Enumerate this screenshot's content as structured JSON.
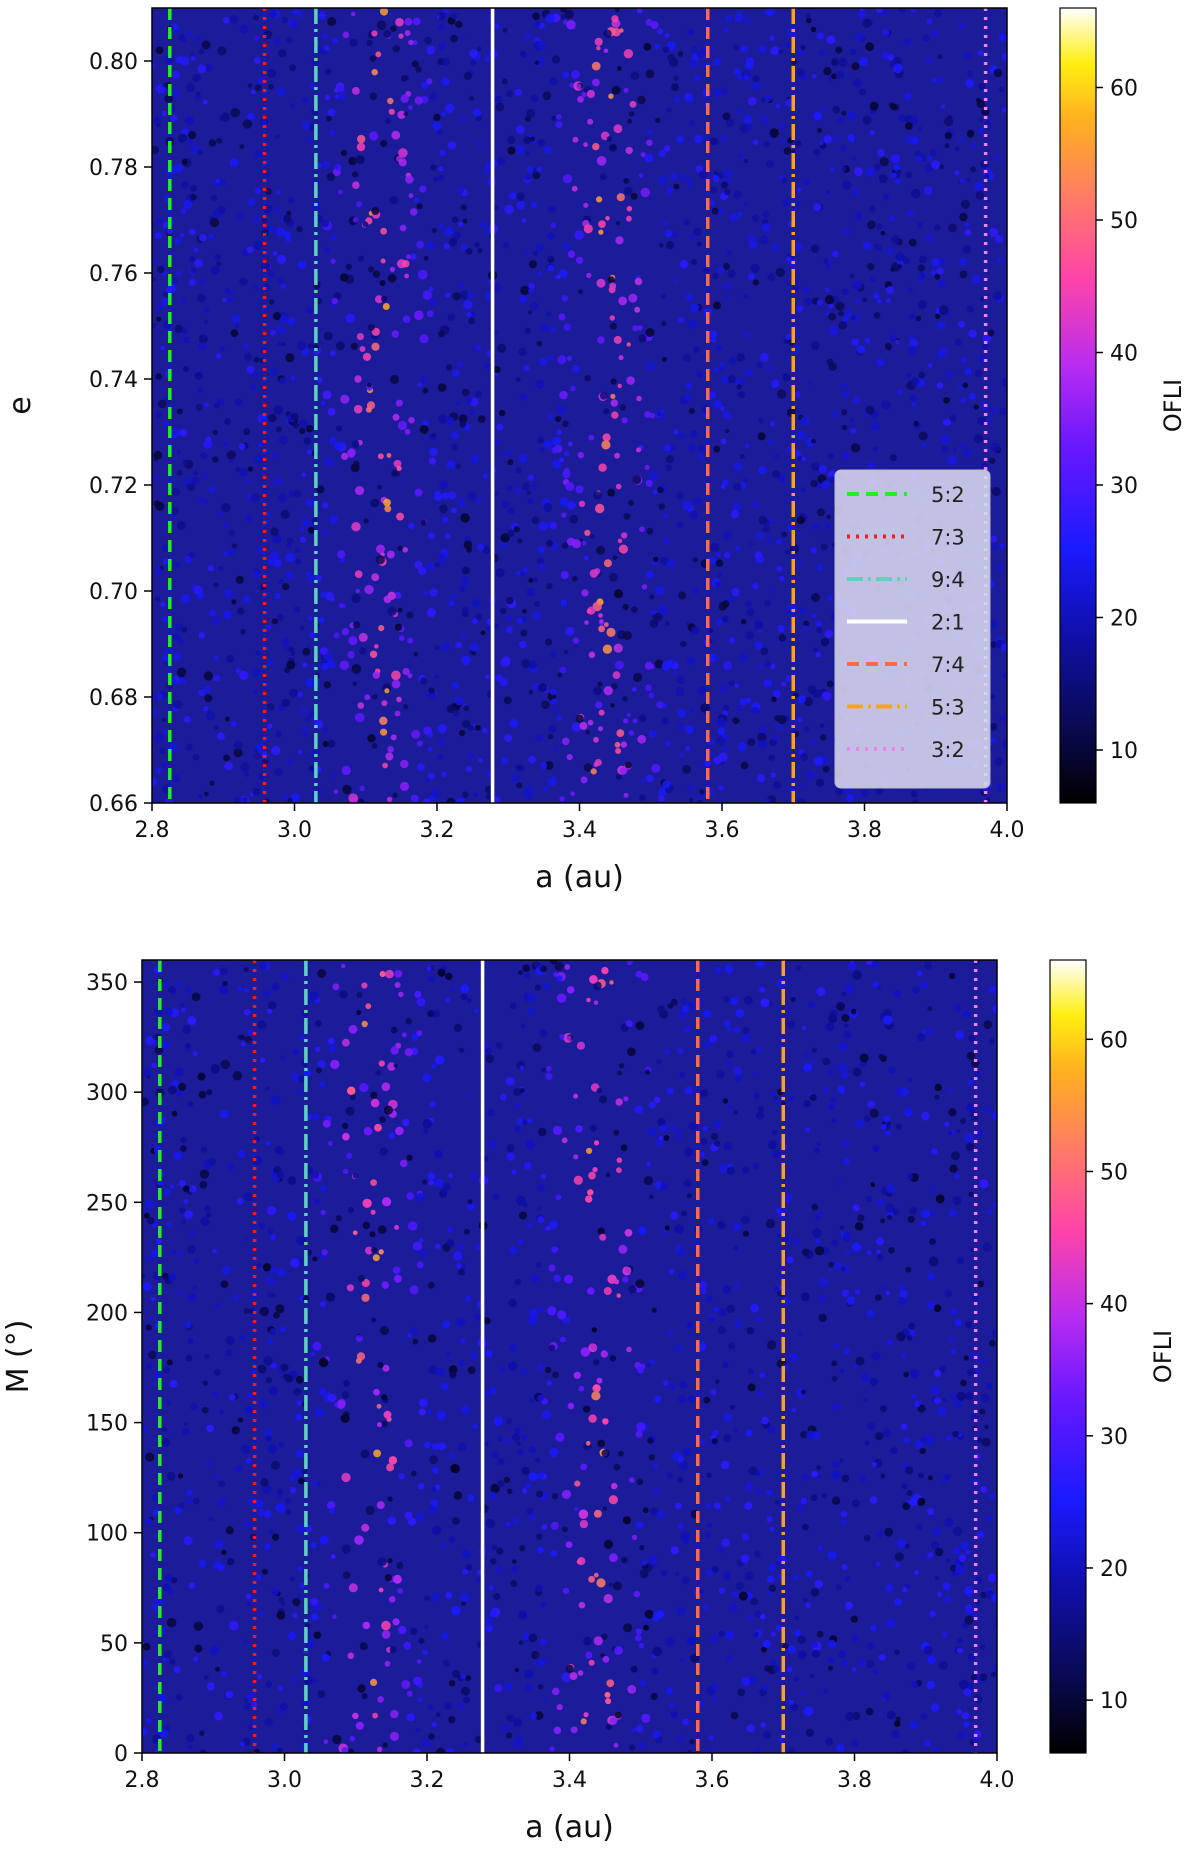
{
  "chart_data": [
    {
      "type": "scatter",
      "panel": "top",
      "xlabel": "a (au)",
      "ylabel": "e",
      "xlim": [
        2.8,
        4.0
      ],
      "ylim": [
        0.66,
        0.81
      ],
      "xticks": [
        "2.8",
        "3.0",
        "3.2",
        "3.4",
        "3.6",
        "3.8",
        "4.0"
      ],
      "yticks": [
        "0.66",
        "0.68",
        "0.70",
        "0.72",
        "0.74",
        "0.76",
        "0.78",
        "0.80"
      ],
      "colorbar": {
        "label": "OFLI",
        "range": [
          6,
          66
        ],
        "ticks": [
          "10",
          "20",
          "30",
          "40",
          "50",
          "60"
        ],
        "colormap": "gnuplot2"
      },
      "background_color": "#1c1c9a",
      "high_ofli_bands": [
        {
          "a_center": 3.12,
          "description": "bright band left of 2:1"
        },
        {
          "a_center": 3.44,
          "description": "bright band right of 2:1"
        }
      ],
      "resonances": [
        {
          "name": "5:2",
          "a": 2.825,
          "color": "#22ee22",
          "style": "dashed"
        },
        {
          "name": "7:3",
          "a": 2.958,
          "color": "#ff1a1a",
          "style": "dotted"
        },
        {
          "name": "9:4",
          "a": 3.03,
          "color": "#5fd3c0",
          "style": "dashdot"
        },
        {
          "name": "2:1",
          "a": 3.278,
          "color": "#ffffff",
          "style": "solid"
        },
        {
          "name": "7:4",
          "a": 3.58,
          "color": "#ff6b4a",
          "style": "dashed"
        },
        {
          "name": "5:3",
          "a": 3.7,
          "color": "#ffa21a",
          "style": "dashdot"
        },
        {
          "name": "3:2",
          "a": 3.97,
          "color": "#ee82ee",
          "style": "dotted"
        }
      ],
      "legend": {
        "placement": "lower-right",
        "entries": [
          "5:2",
          "7:3",
          "9:4",
          "2:1",
          "7:4",
          "5:3",
          "3:2"
        ]
      }
    },
    {
      "type": "scatter",
      "panel": "bottom",
      "xlabel": "a (au)",
      "ylabel": "M (°)",
      "xlim": [
        2.8,
        4.0
      ],
      "ylim": [
        0,
        360
      ],
      "xticks": [
        "2.8",
        "3.0",
        "3.2",
        "3.4",
        "3.6",
        "3.8",
        "4.0"
      ],
      "yticks": [
        "0",
        "50",
        "100",
        "150",
        "200",
        "250",
        "300",
        "350"
      ],
      "colorbar": {
        "label": "OFLI",
        "range": [
          6,
          66
        ],
        "ticks": [
          "10",
          "20",
          "30",
          "40",
          "50",
          "60"
        ],
        "colormap": "gnuplot2"
      },
      "background_color": "#1c1c9a",
      "high_ofli_bands": [
        {
          "a_center": 3.12,
          "description": "bright curved band left of 2:1"
        },
        {
          "a_center": 3.44,
          "description": "bright curved band right of 2:1"
        }
      ],
      "resonances": [
        {
          "name": "5:2",
          "a": 2.825,
          "color": "#22ee22",
          "style": "dashed"
        },
        {
          "name": "7:3",
          "a": 2.958,
          "color": "#ff1a1a",
          "style": "dotted"
        },
        {
          "name": "9:4",
          "a": 3.03,
          "color": "#5fd3c0",
          "style": "dashdot"
        },
        {
          "name": "2:1",
          "a": 3.278,
          "color": "#ffffff",
          "style": "solid"
        },
        {
          "name": "7:4",
          "a": 3.58,
          "color": "#ff6b4a",
          "style": "dashed"
        },
        {
          "name": "5:3",
          "a": 3.7,
          "color": "#ffa21a",
          "style": "dashdot"
        },
        {
          "name": "3:2",
          "a": 3.97,
          "color": "#ee82ee",
          "style": "dotted"
        }
      ]
    }
  ]
}
